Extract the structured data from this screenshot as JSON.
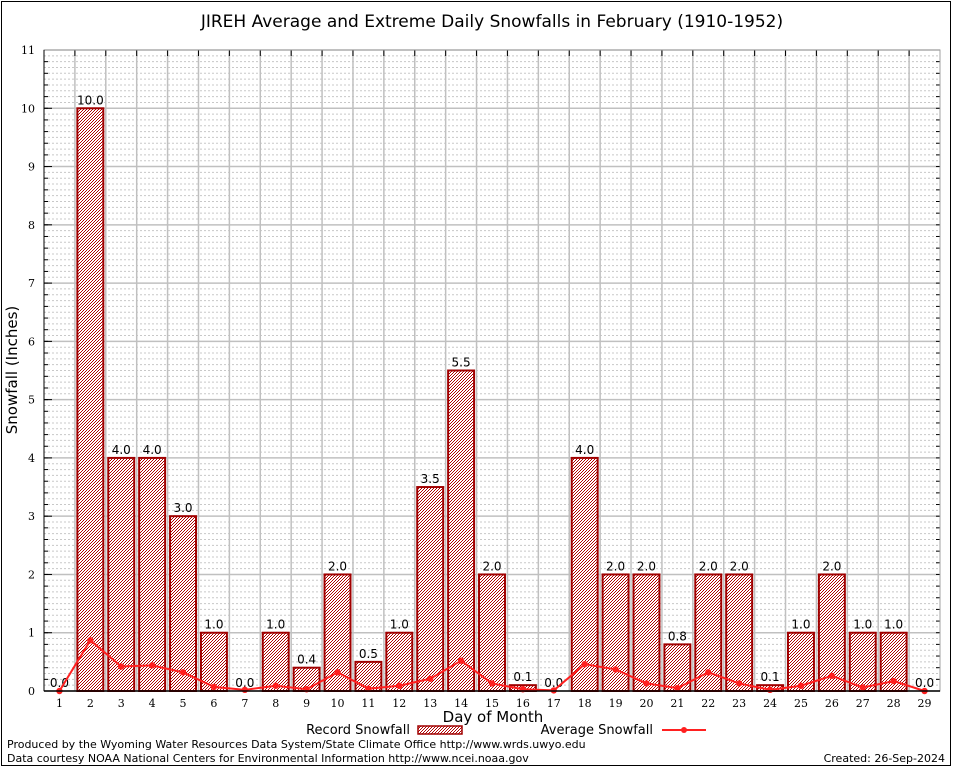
{
  "chart_data": {
    "type": "bar",
    "title": "JIREH Average and Extreme Daily Snowfalls in February (1910-1952)",
    "xlabel": "Day of Month",
    "ylabel": "Snowfall (Inches)",
    "ylim": [
      0,
      11
    ],
    "yticks": [
      0,
      1,
      2,
      3,
      4,
      5,
      6,
      7,
      8,
      9,
      10,
      11
    ],
    "grid": true,
    "legend_placement": "bottom",
    "categories": [
      1,
      2,
      3,
      4,
      5,
      6,
      7,
      8,
      9,
      10,
      11,
      12,
      13,
      14,
      15,
      16,
      17,
      18,
      19,
      20,
      21,
      22,
      23,
      24,
      25,
      26,
      27,
      28,
      29
    ],
    "series": [
      {
        "name": "Record Snowfall",
        "type": "bar",
        "color": "#a00000",
        "values": [
          0.0,
          10.0,
          4.0,
          4.0,
          3.0,
          1.0,
          0.0,
          1.0,
          0.4,
          2.0,
          0.5,
          1.0,
          3.5,
          5.5,
          2.0,
          0.1,
          0.0,
          4.0,
          2.0,
          2.0,
          0.8,
          2.0,
          2.0,
          0.1,
          1.0,
          2.0,
          1.0,
          1.0,
          0.0
        ]
      },
      {
        "name": "Average Snowfall",
        "type": "line",
        "color": "#ff2020",
        "values": [
          0.0,
          0.87,
          0.42,
          0.44,
          0.32,
          0.07,
          0.02,
          0.09,
          0.03,
          0.32,
          0.04,
          0.09,
          0.21,
          0.52,
          0.13,
          0.03,
          0.01,
          0.46,
          0.37,
          0.13,
          0.05,
          0.32,
          0.13,
          0.02,
          0.09,
          0.26,
          0.06,
          0.17,
          0.0
        ]
      }
    ]
  },
  "footer": {
    "produced_by": "Produced by the Wyoming Water Resources Data System/State Climate Office http://www.wrds.uwyo.edu",
    "courtesy": "Data courtesy NOAA National Centers for Environmental Information http://www.ncei.noaa.gov",
    "created": "Created:  26-Sep-2024"
  }
}
